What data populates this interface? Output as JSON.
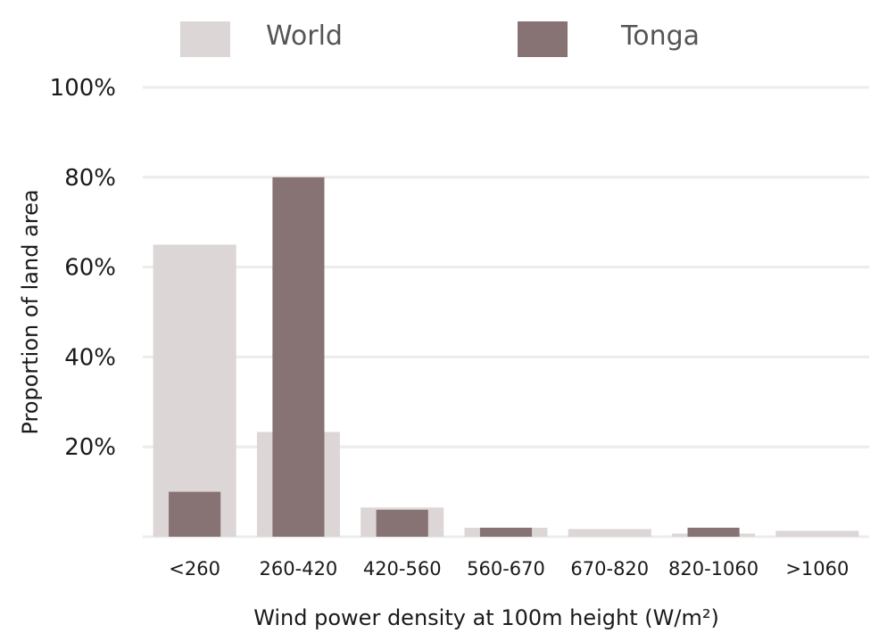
{
  "chart_data": {
    "type": "bar",
    "title": "",
    "xlabel": "Wind power density at 100m height (W/m²)",
    "ylabel": "Proportion of land area",
    "categories": [
      "<260",
      "260-420",
      "420-560",
      "560-670",
      "670-820",
      "820-1060",
      ">1060"
    ],
    "series": [
      {
        "name": "World",
        "color": "#dcd6d6",
        "values": [
          65,
          23.3,
          6.5,
          2,
          1.7,
          0.7,
          1.3
        ]
      },
      {
        "name": "Tonga",
        "color": "#877274",
        "values": [
          10,
          80,
          6,
          2,
          0,
          2,
          0
        ]
      }
    ],
    "ylim": [
      0,
      100
    ],
    "yticks": [
      20,
      40,
      60,
      80,
      100
    ],
    "ytick_labels": [
      "20%",
      "40%",
      "60%",
      "80%",
      "100%"
    ],
    "grid": true,
    "legend_position": "top"
  }
}
